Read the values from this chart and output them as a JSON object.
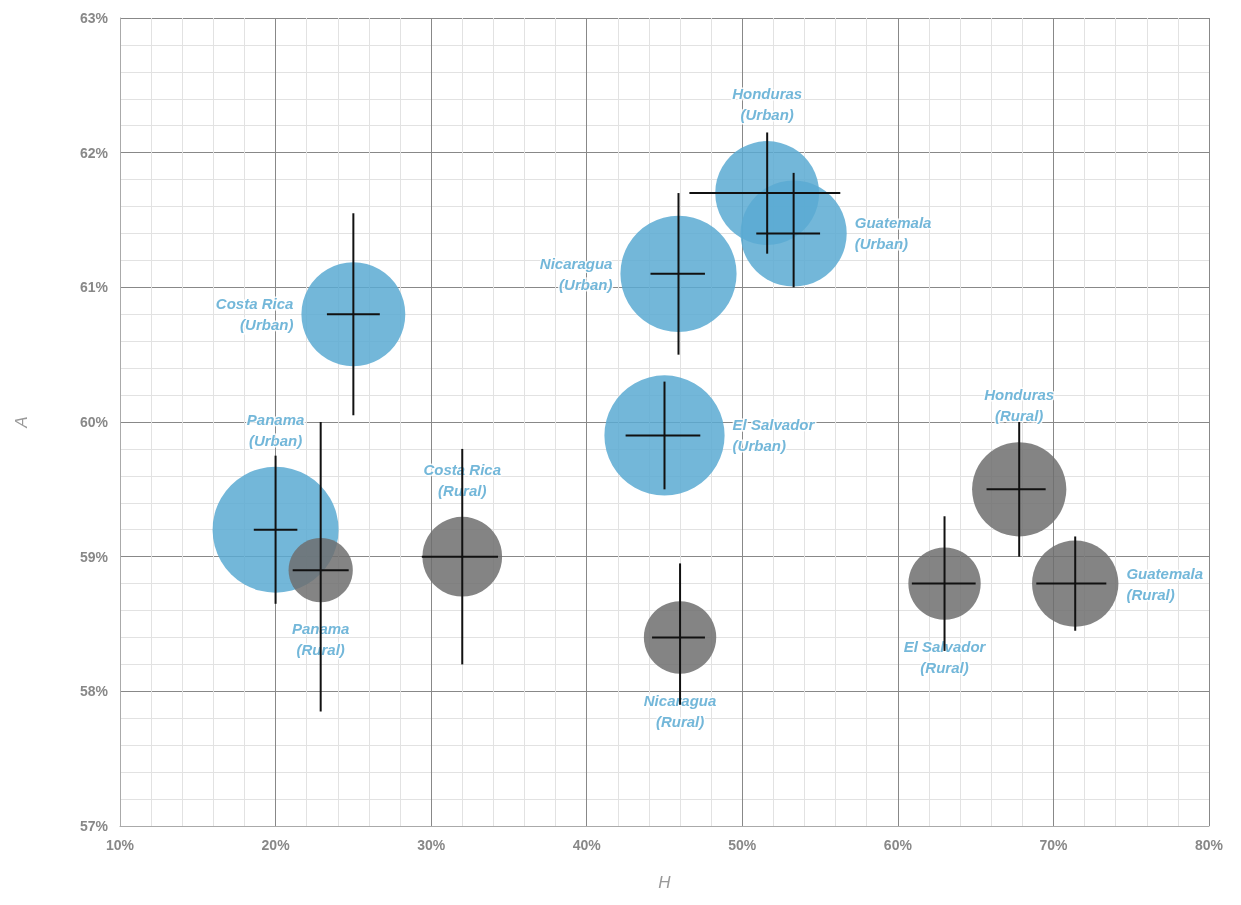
{
  "chart_data": {
    "type": "bubble",
    "xlabel": "H",
    "ylabel": "A",
    "xlim": [
      10,
      80
    ],
    "xticks": [
      {
        "value": 10,
        "label": "10%"
      },
      {
        "value": 20,
        "label": "20%"
      },
      {
        "value": 30,
        "label": "30%"
      },
      {
        "value": 40,
        "label": "40%"
      },
      {
        "value": 50,
        "label": "50%"
      },
      {
        "value": 60,
        "label": "60%"
      },
      {
        "value": 70,
        "label": "70%"
      },
      {
        "value": 80,
        "label": "80%"
      }
    ],
    "ylim": [
      57,
      63
    ],
    "yticks": [
      {
        "value": 57,
        "label": "57%"
      },
      {
        "value": 58,
        "label": "58%"
      },
      {
        "value": 59,
        "label": "59%"
      },
      {
        "value": 60,
        "label": "60%"
      },
      {
        "value": 61,
        "label": "61%"
      },
      {
        "value": 62,
        "label": "62%"
      },
      {
        "value": 63,
        "label": "63%"
      }
    ],
    "grid": true,
    "series": [
      {
        "color": "#5aaad2",
        "x": [
          25,
          20,
          45.9,
          45,
          51.6,
          53.3
        ],
        "values": [
          60.8,
          59.2,
          61.1,
          59.9,
          61.7,
          61.4
        ],
        "sizes": [
          0.68,
          1,
          0.85,
          0.91,
          0.68,
          0.71
        ],
        "errors": [
          [
            60.05,
            61.55
          ],
          [
            58.65,
            59.75
          ],
          [
            60.5,
            61.7
          ],
          [
            59.5,
            60.3
          ],
          [
            61.25,
            62.15
          ],
          [
            61,
            61.85
          ]
        ],
        "xerrors": [
          [
            23.3,
            26.7
          ],
          [
            18.6,
            21.4
          ],
          [
            44.1,
            47.6
          ],
          [
            42.5,
            47.3
          ],
          [
            46.6,
            56.3
          ],
          [
            50.9,
            55
          ]
        ],
        "value_labels": [
          "Costa Rica\n(Urban)",
          "Panama\n(Urban)",
          "Nicaragua\n(Urban)",
          "El Salvador\n(Urban)",
          "Honduras\n(Urban)",
          "Guatemala\n(Urban)"
        ]
      },
      {
        "color": "#6e6e6e",
        "x": [
          22.9,
          32,
          46,
          63,
          67.8,
          71.4
        ],
        "values": [
          58.9,
          59,
          58.4,
          58.8,
          59.5,
          58.8
        ],
        "sizes": [
          0.26,
          0.4,
          0.33,
          0.33,
          0.56,
          0.47
        ],
        "errors": [
          [
            57.85,
            60
          ],
          [
            58.2,
            59.8
          ],
          [
            57.9,
            58.95
          ],
          [
            58.3,
            59.3
          ],
          [
            59,
            60
          ],
          [
            58.45,
            59.15
          ]
        ],
        "xerrors": [
          [
            21.1,
            24.7
          ],
          [
            29.4,
            34.3
          ],
          [
            44.2,
            47.6
          ],
          [
            60.9,
            65
          ],
          [
            65.7,
            69.5
          ],
          [
            68.9,
            73.4
          ]
        ],
        "value_labels": [
          "Panama\n(Rural)",
          "Costa Rica\n(Rural)",
          "Nicaragua\n(Rural)",
          "El Salvador\n(Rural)",
          "Honduras\n(Rural)",
          "Guatemala\n(Rural)"
        ]
      }
    ]
  }
}
